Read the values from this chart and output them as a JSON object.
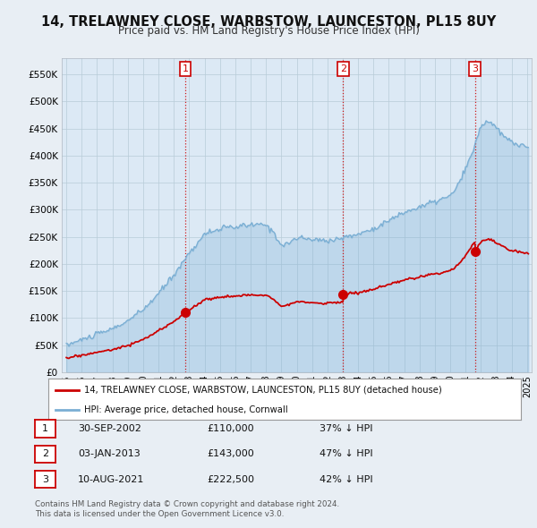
{
  "title": "14, TRELAWNEY CLOSE, WARBSTOW, LAUNCESTON, PL15 8UY",
  "subtitle": "Price paid vs. HM Land Registry's House Price Index (HPI)",
  "sale_info": [
    {
      "label": "1",
      "date": "30-SEP-2002",
      "price": "£110,000",
      "pct": "37% ↓ HPI"
    },
    {
      "label": "2",
      "date": "03-JAN-2013",
      "price": "£143,000",
      "pct": "47% ↓ HPI"
    },
    {
      "label": "3",
      "date": "10-AUG-2021",
      "price": "£222,500",
      "pct": "42% ↓ HPI"
    }
  ],
  "legend_line1": "14, TRELAWNEY CLOSE, WARBSTOW, LAUNCESTON, PL15 8UY (detached house)",
  "legend_line2": "HPI: Average price, detached house, Cornwall",
  "footer1": "Contains HM Land Registry data © Crown copyright and database right 2024.",
  "footer2": "This data is licensed under the Open Government Licence v3.0.",
  "sale_color": "#cc0000",
  "hpi_color": "#7bafd4",
  "hpi_fill_color": "#dce9f5",
  "background_color": "#e8eef4",
  "plot_bg_color": "#dce9f5",
  "ylim": [
    0,
    580000
  ],
  "yticks": [
    0,
    50000,
    100000,
    150000,
    200000,
    250000,
    300000,
    350000,
    400000,
    450000,
    500000,
    550000
  ],
  "xlim_start": 1994.7,
  "xlim_end": 2025.3,
  "sale_year_floats": [
    2002.75,
    2013.02,
    2021.61
  ],
  "sale_prices": [
    110000,
    143000,
    222500
  ]
}
